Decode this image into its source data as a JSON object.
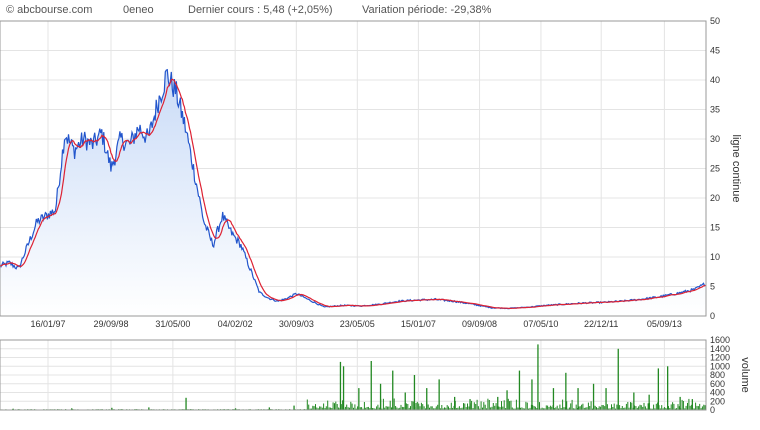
{
  "header": {
    "brand": "© abcbourse.com",
    "symbol": "0eneo",
    "last_price": "Dernier cours : 5,48 (+2,05%)",
    "period_change": "Variation période: -29,38%"
  },
  "colors": {
    "price_line": "#2255cc",
    "ma_line": "#dd2233",
    "area_top": "#c9dbf7",
    "area_bottom": "#ffffff",
    "volume_bar": "#228822",
    "grid": "#e4e4e4",
    "axis": "#999999"
  },
  "chart_data": [
    {
      "type": "line",
      "ylabel": "ligne continue",
      "ylim": [
        0,
        50
      ],
      "yticks": [
        0,
        5,
        10,
        15,
        20,
        25,
        30,
        35,
        40,
        45,
        50
      ],
      "xlim": [
        "1995-10-01",
        "2014-10-20"
      ],
      "xticks": [
        "16/01/97",
        "29/09/98",
        "31/05/00",
        "04/02/02",
        "30/09/03",
        "23/05/05",
        "15/01/07",
        "09/09/08",
        "07/05/10",
        "22/12/11",
        "05/09/13"
      ],
      "grid": true,
      "series": [
        {
          "x": [
            "1995-10-01",
            "1996-01-01",
            "1996-04-01",
            "1996-07-01",
            "1996-10-01",
            "1997-01-01",
            "1997-04-01",
            "1997-07-01",
            "1997-10-01",
            "1998-01-01",
            "1998-04-01",
            "1998-07-01",
            "1998-10-01",
            "1999-01-01",
            "1999-04-01",
            "1999-07-01",
            "1999-10-01",
            "2000-01-01",
            "2000-04-01",
            "2000-07-01",
            "2000-10-01",
            "2001-01-01",
            "2001-04-01",
            "2001-07-01",
            "2001-10-01",
            "2002-01-01",
            "2002-04-01",
            "2002-07-01",
            "2002-10-01",
            "2003-01-01",
            "2003-04-01",
            "2003-07-01",
            "2003-10-01",
            "2004-01-01",
            "2004-07-01",
            "2005-01-01",
            "2005-07-01",
            "2006-01-01",
            "2006-07-01",
            "2007-01-01",
            "2007-07-01",
            "2008-01-01",
            "2008-07-01",
            "2009-01-01",
            "2009-07-01",
            "2010-01-01",
            "2010-07-01",
            "2011-01-01",
            "2011-07-01",
            "2012-01-01",
            "2012-07-01",
            "2013-01-01",
            "2013-07-01",
            "2014-01-01",
            "2014-07-01",
            "2014-10-15"
          ],
          "values": [
            8.5,
            9,
            8,
            12,
            16,
            17,
            18,
            31,
            28,
            30,
            29,
            31,
            25,
            30,
            29,
            32,
            30,
            36,
            41,
            38,
            32,
            24,
            16,
            12,
            17,
            14,
            12,
            8,
            4,
            3,
            2.5,
            3,
            3.8,
            3,
            1.5,
            1.8,
            1.7,
            2,
            2.5,
            2.7,
            2.8,
            2.5,
            2,
            1.4,
            1.3,
            1.5,
            1.8,
            2,
            2.2,
            2.3,
            2.5,
            2.8,
            3.2,
            3.8,
            4.5,
            5.5
          ]
        }
      ]
    },
    {
      "type": "bar",
      "ylabel": "volume",
      "ylim": [
        0,
        1600
      ],
      "yticks": [
        0,
        200,
        400,
        600,
        800,
        1000,
        1200,
        1400,
        1600
      ],
      "volume_spikes": [
        {
          "x": "1996-02-01",
          "value": 30
        },
        {
          "x": "1997-09-01",
          "value": 40
        },
        {
          "x": "1998-10-01",
          "value": 50
        },
        {
          "x": "1999-10-01",
          "value": 60
        },
        {
          "x": "2000-10-01",
          "value": 280
        },
        {
          "x": "2002-02-01",
          "value": 40
        },
        {
          "x": "2003-01-01",
          "value": 60
        },
        {
          "x": "2003-09-01",
          "value": 100
        },
        {
          "x": "2004-12-01",
          "value": 1100
        },
        {
          "x": "2005-01-01",
          "value": 1000
        },
        {
          "x": "2005-06-01",
          "value": 500
        },
        {
          "x": "2005-10-01",
          "value": 1120
        },
        {
          "x": "2006-01-01",
          "value": 600
        },
        {
          "x": "2006-05-01",
          "value": 900
        },
        {
          "x": "2006-09-01",
          "value": 400
        },
        {
          "x": "2006-12-01",
          "value": 800
        },
        {
          "x": "2007-04-01",
          "value": 500
        },
        {
          "x": "2007-08-01",
          "value": 700
        },
        {
          "x": "2008-01-01",
          "value": 300
        },
        {
          "x": "2008-06-01",
          "value": 250
        },
        {
          "x": "2009-03-01",
          "value": 300
        },
        {
          "x": "2009-06-01",
          "value": 450
        },
        {
          "x": "2009-10-01",
          "value": 900
        },
        {
          "x": "2010-02-01",
          "value": 700
        },
        {
          "x": "2010-04-01",
          "value": 1500
        },
        {
          "x": "2010-09-01",
          "value": 500
        },
        {
          "x": "2011-01-01",
          "value": 850
        },
        {
          "x": "2011-05-01",
          "value": 500
        },
        {
          "x": "2011-10-01",
          "value": 600
        },
        {
          "x": "2012-02-01",
          "value": 500
        },
        {
          "x": "2012-06-01",
          "value": 1400
        },
        {
          "x": "2012-11-01",
          "value": 400
        },
        {
          "x": "2013-04-01",
          "value": 350
        },
        {
          "x": "2013-07-01",
          "value": 950
        },
        {
          "x": "2013-10-01",
          "value": 1000
        },
        {
          "x": "2014-02-01",
          "value": 300
        },
        {
          "x": "2014-06-01",
          "value": 250
        }
      ]
    }
  ]
}
